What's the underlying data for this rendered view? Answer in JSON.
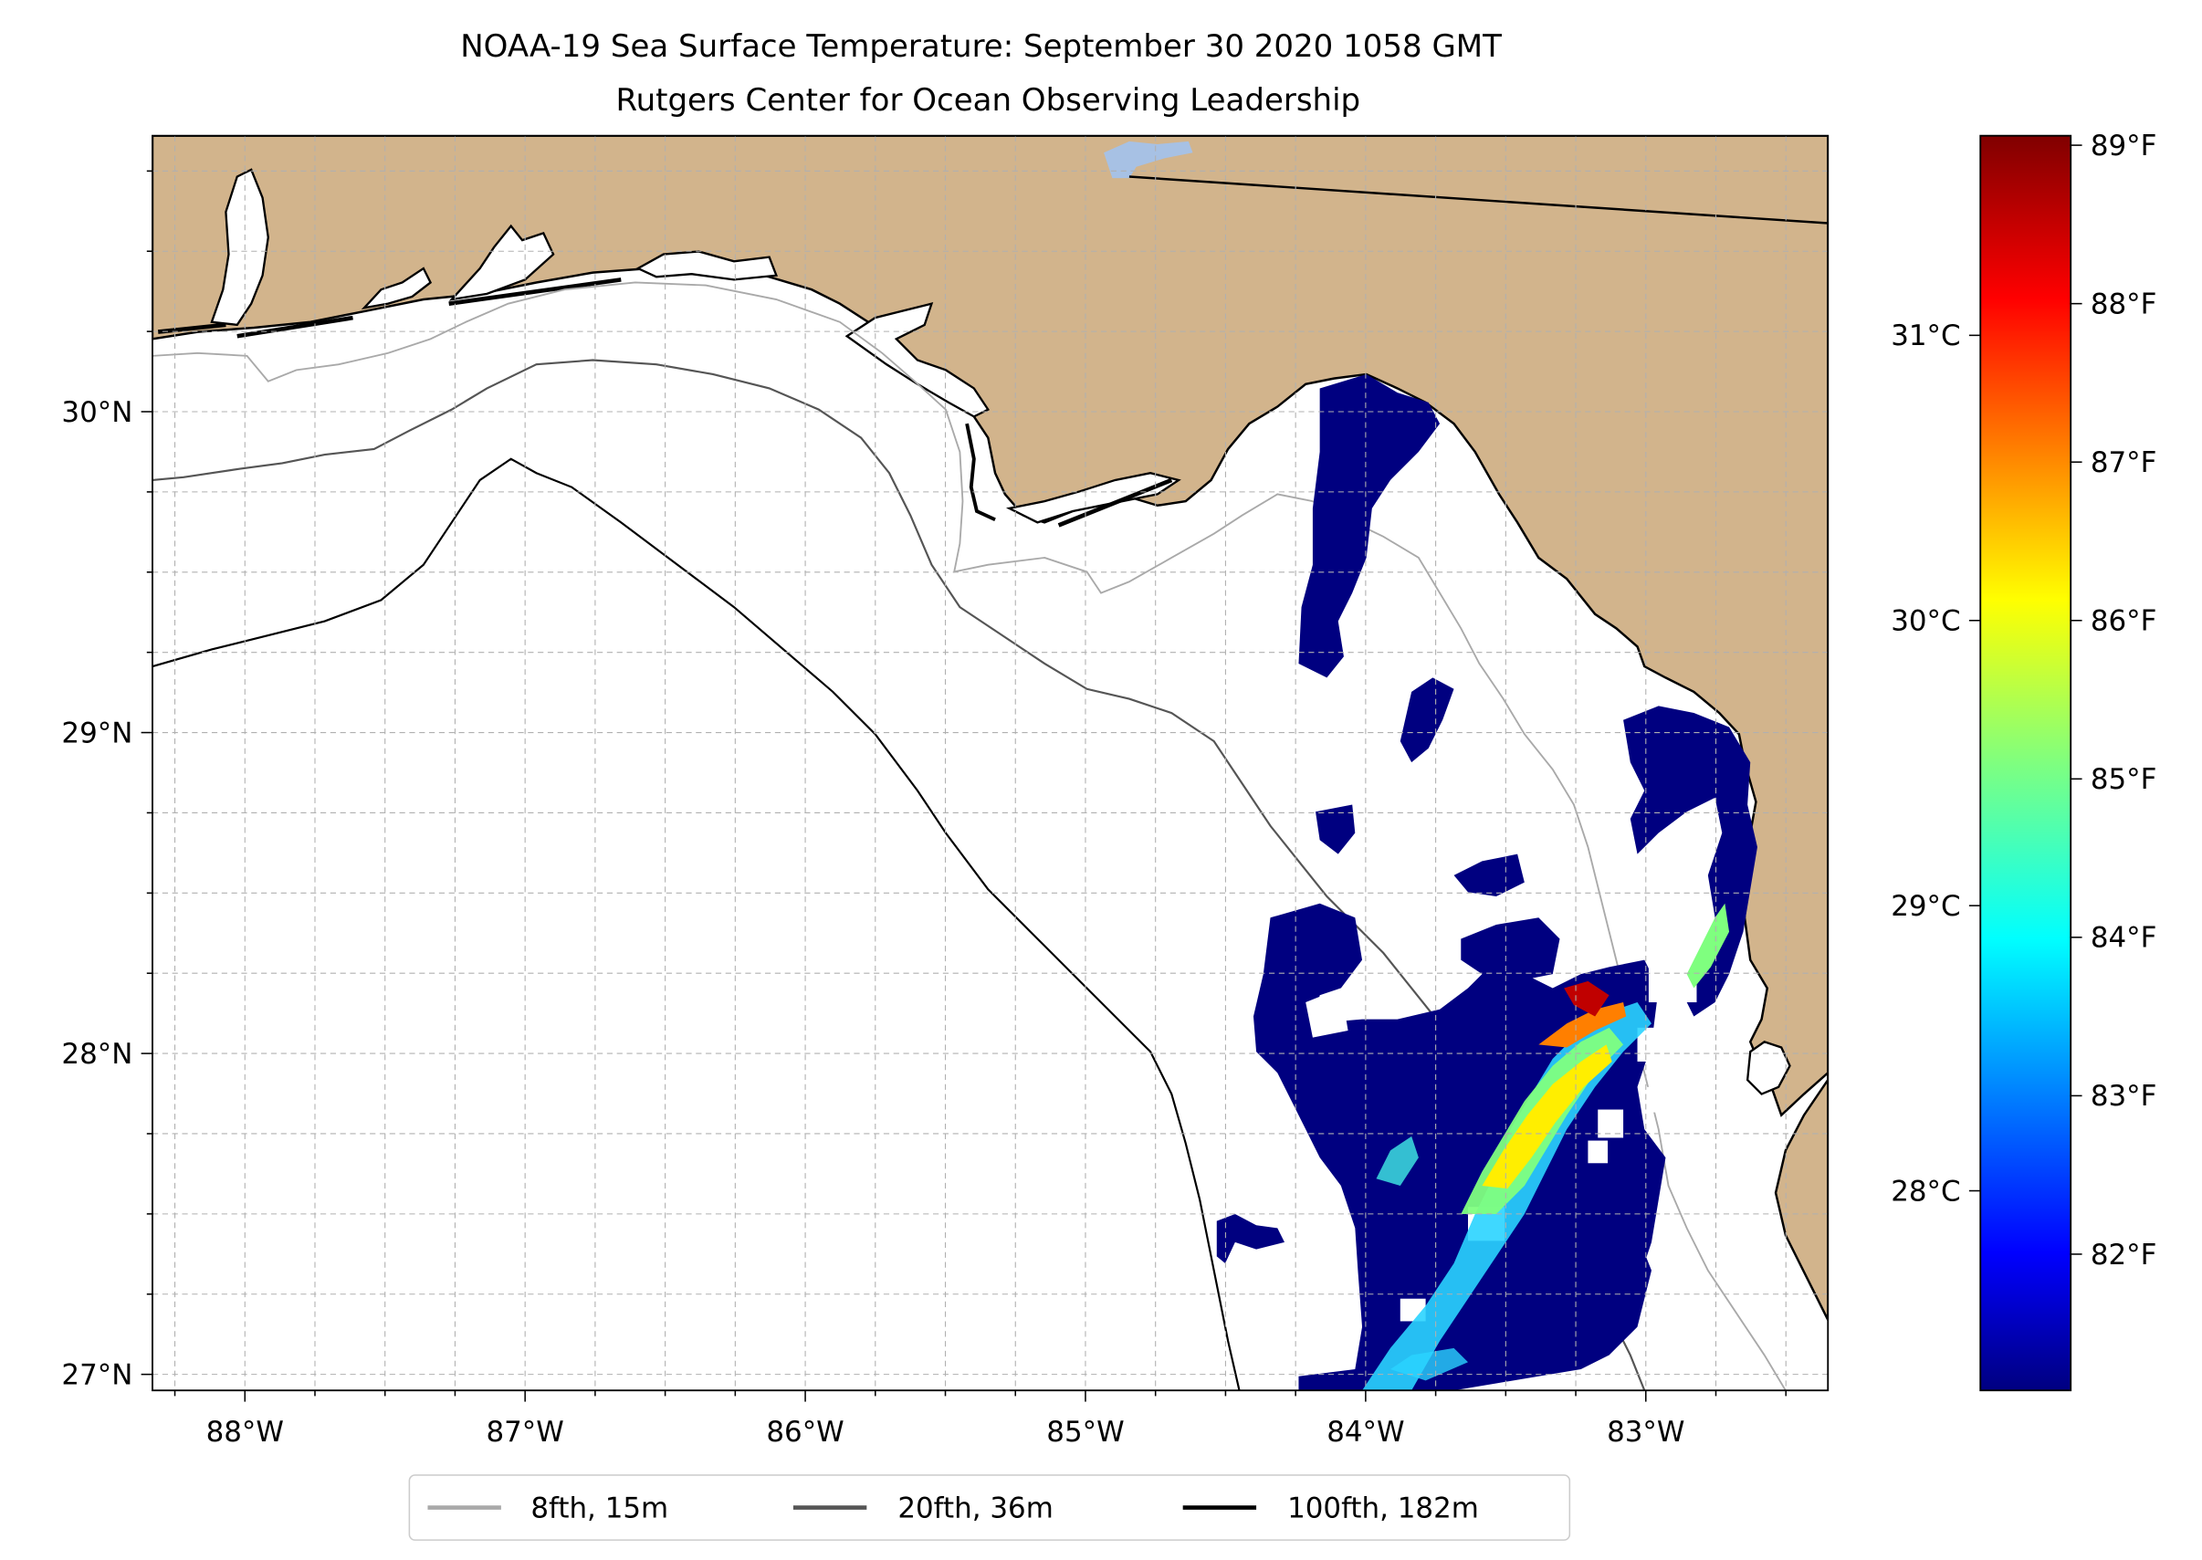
{
  "title": {
    "line1": "NOAA-19 Sea Surface Temperature: September 30 2020 1058 GMT",
    "line2": "Rutgers Center for Ocean Observing Leadership"
  },
  "map": {
    "lon_range": [
      -88.33,
      -82.35
    ],
    "lat_range": [
      26.95,
      30.86
    ],
    "lon_ticks": [
      {
        "value": -88,
        "label": "88°W"
      },
      {
        "value": -87,
        "label": "87°W"
      },
      {
        "value": -86,
        "label": "86°W"
      },
      {
        "value": -85,
        "label": "85°W"
      },
      {
        "value": -84,
        "label": "84°W"
      },
      {
        "value": -83,
        "label": "83°W"
      }
    ],
    "lat_ticks": [
      {
        "value": 27,
        "label": "27°N"
      },
      {
        "value": 28,
        "label": "28°N"
      },
      {
        "value": 29,
        "label": "29°N"
      },
      {
        "value": 30,
        "label": "30°N"
      }
    ],
    "grid": true,
    "land_color": "#d2b48c",
    "water_color": "#ffffff",
    "lake_color": "#a7c1e4"
  },
  "legend": {
    "placement": "bottom-center",
    "items": [
      {
        "label": "8fth, 15m",
        "color": "#a9a9a9"
      },
      {
        "label": "20fth, 36m",
        "color": "#555555"
      },
      {
        "label": "100fth, 182m",
        "color": "#000000"
      }
    ]
  },
  "colorbar": {
    "colormap": "jet",
    "min_c": 27.3,
    "max_c": 31.7,
    "celsius_ticks": [
      {
        "value": 28,
        "label": "28°C"
      },
      {
        "value": 29,
        "label": "29°C"
      },
      {
        "value": 30,
        "label": "30°C"
      },
      {
        "value": 31,
        "label": "31°C"
      }
    ],
    "fahrenheit_ticks": [
      {
        "value": 82,
        "label": "82°F"
      },
      {
        "value": 83,
        "label": "83°F"
      },
      {
        "value": 84,
        "label": "84°F"
      },
      {
        "value": 85,
        "label": "85°F"
      },
      {
        "value": 86,
        "label": "86°F"
      },
      {
        "value": 87,
        "label": "87°F"
      },
      {
        "value": 88,
        "label": "88°F"
      },
      {
        "value": 89,
        "label": "89°F"
      }
    ]
  }
}
